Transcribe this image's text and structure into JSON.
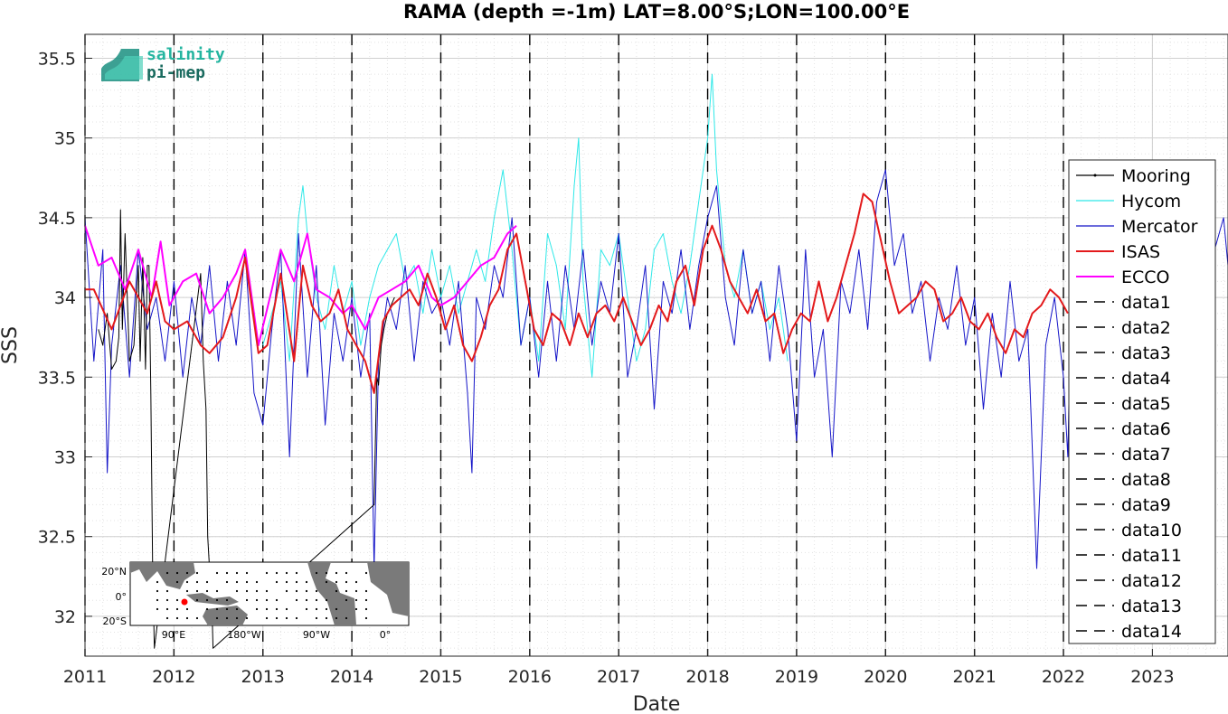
{
  "chart_data": {
    "type": "line",
    "title": "RAMA (depth =-1m) LAT=8.00°S;LON=100.00°E",
    "xlabel": "Date",
    "ylabel": "SSS",
    "xlim": [
      2011.0,
      2023.85
    ],
    "ylim": [
      31.75,
      35.65
    ],
    "x_ticks": [
      "2011",
      "2012",
      "2013",
      "2014",
      "2015",
      "2016",
      "2017",
      "2018",
      "2019",
      "2020",
      "2021",
      "2022",
      "2023"
    ],
    "y_ticks": [
      "32",
      "32.5",
      "33",
      "33.5",
      "34",
      "34.5",
      "35",
      "35.5"
    ],
    "y_tick_values": [
      32,
      32.5,
      33,
      33.5,
      34,
      34.5,
      35,
      35.5
    ],
    "grid": true,
    "legend_position": "right",
    "vertical_dashed_lines_x": [
      2011,
      2012,
      2013,
      2014,
      2015,
      2016,
      2017,
      2018,
      2019,
      2020,
      2021,
      2022
    ],
    "series": [
      {
        "name": "Mooring",
        "color": "#000000",
        "x": [
          2011.15,
          2011.2,
          2011.25,
          2011.3,
          2011.35,
          2011.38,
          2011.4,
          2011.42,
          2011.45,
          2011.5,
          2011.55,
          2011.6,
          2011.62,
          2011.65,
          2011.68,
          2011.7,
          2011.72,
          2011.74,
          2011.76,
          2011.78,
          2012.3,
          2012.33,
          2012.36,
          2012.38,
          2012.4,
          2012.42,
          2012.44,
          2014.25,
          2014.28,
          2014.3,
          2014.33,
          2014.36,
          2014.4,
          2014.44,
          2014.48
        ],
        "y": [
          33.8,
          33.7,
          33.9,
          33.55,
          33.6,
          33.75,
          34.55,
          33.8,
          34.4,
          33.6,
          33.7,
          34.2,
          33.6,
          34.25,
          33.55,
          34.2,
          34.2,
          33.4,
          32.3,
          31.8,
          34.15,
          33.6,
          33.3,
          32.5,
          32.3,
          32.2,
          31.8,
          32.7,
          33.5,
          33.45,
          33.7,
          33.8,
          33.9,
          33.95,
          34.0
        ]
      },
      {
        "name": "Hycom",
        "color": "#2ee8e8",
        "x": [
          2013.0,
          2013.1,
          2013.2,
          2013.3,
          2013.4,
          2013.45,
          2013.5,
          2013.6,
          2013.7,
          2013.8,
          2013.9,
          2014.0,
          2014.1,
          2014.2,
          2014.3,
          2014.4,
          2014.5,
          2014.6,
          2014.7,
          2014.8,
          2014.9,
          2015.0,
          2015.1,
          2015.2,
          2015.3,
          2015.4,
          2015.5,
          2015.6,
          2015.7,
          2015.8,
          2015.9,
          2016.0,
          2016.1,
          2016.2,
          2016.3,
          2016.4,
          2016.5,
          2016.55,
          2016.6,
          2016.7,
          2016.8,
          2016.9,
          2017.0,
          2017.1,
          2017.2,
          2017.3,
          2017.4,
          2017.5,
          2017.6,
          2017.7,
          2017.8,
          2017.9,
          2018.0,
          2018.05,
          2018.1,
          2018.15,
          2018.2,
          2018.3,
          2018.4,
          2018.5,
          2018.6,
          2018.7,
          2018.8,
          2018.9
        ],
        "y": [
          33.7,
          33.9,
          34.1,
          33.6,
          34.5,
          34.7,
          34.4,
          34.0,
          33.8,
          34.2,
          33.9,
          34.1,
          33.7,
          34.0,
          34.2,
          34.3,
          34.4,
          34.1,
          34.2,
          33.9,
          34.3,
          34.0,
          34.2,
          33.9,
          34.1,
          34.3,
          34.1,
          34.5,
          34.8,
          34.3,
          33.7,
          34.0,
          33.6,
          34.4,
          34.2,
          33.8,
          34.7,
          35.0,
          34.1,
          33.5,
          34.3,
          34.2,
          34.4,
          34.0,
          33.6,
          33.8,
          34.3,
          34.4,
          34.1,
          33.9,
          34.2,
          34.6,
          35.0,
          35.4,
          34.8,
          34.5,
          34.2,
          34.0,
          34.3,
          33.9,
          34.1,
          33.8,
          34.0,
          33.6
        ]
      },
      {
        "name": "Mercator",
        "color": "#1515c8",
        "x": [
          2011.0,
          2011.1,
          2011.2,
          2011.25,
          2011.3,
          2011.4,
          2011.5,
          2011.6,
          2011.7,
          2011.8,
          2011.9,
          2012.0,
          2012.1,
          2012.2,
          2012.3,
          2012.4,
          2012.5,
          2012.6,
          2012.7,
          2012.8,
          2012.9,
          2013.0,
          2013.1,
          2013.2,
          2013.3,
          2013.4,
          2013.5,
          2013.6,
          2013.7,
          2013.8,
          2013.9,
          2014.0,
          2014.1,
          2014.2,
          2014.25,
          2014.3,
          2014.4,
          2014.5,
          2014.6,
          2014.7,
          2014.8,
          2014.9,
          2015.0,
          2015.1,
          2015.2,
          2015.3,
          2015.35,
          2015.4,
          2015.5,
          2015.6,
          2015.7,
          2015.8,
          2015.9,
          2016.0,
          2016.1,
          2016.2,
          2016.3,
          2016.4,
          2016.5,
          2016.6,
          2016.7,
          2016.8,
          2016.9,
          2017.0,
          2017.1,
          2017.2,
          2017.3,
          2017.4,
          2017.5,
          2017.6,
          2017.7,
          2017.8,
          2017.9,
          2018.0,
          2018.1,
          2018.2,
          2018.3,
          2018.4,
          2018.5,
          2018.6,
          2018.7,
          2018.8,
          2018.9,
          2019.0,
          2019.1,
          2019.2,
          2019.3,
          2019.4,
          2019.5,
          2019.6,
          2019.7,
          2019.8,
          2019.9,
          2020.0,
          2020.1,
          2020.2,
          2020.3,
          2020.4,
          2020.5,
          2020.6,
          2020.7,
          2020.8,
          2020.9,
          2021.0,
          2021.1,
          2021.2,
          2021.3,
          2021.4,
          2021.5,
          2021.6,
          2021.7,
          2021.8,
          2021.9,
          2022.0,
          2022.05,
          2022.1,
          2022.2,
          2022.3,
          2022.4,
          2022.5,
          2022.6,
          2022.7,
          2022.8,
          2022.9,
          2023.0,
          2023.1,
          2023.2,
          2023.3,
          2023.4,
          2023.5,
          2023.6,
          2023.7,
          2023.8,
          2023.85
        ],
        "y": [
          34.5,
          33.6,
          34.3,
          32.9,
          33.7,
          34.2,
          33.5,
          34.3,
          33.8,
          34.0,
          33.6,
          34.1,
          33.5,
          34.0,
          33.7,
          34.2,
          33.6,
          34.1,
          33.7,
          34.3,
          33.4,
          33.2,
          33.8,
          34.3,
          33.0,
          34.4,
          33.5,
          34.2,
          33.2,
          33.9,
          33.6,
          34.0,
          33.5,
          33.9,
          32.3,
          33.6,
          34.0,
          33.8,
          34.2,
          33.6,
          34.1,
          33.9,
          34.0,
          33.7,
          34.1,
          33.4,
          32.9,
          34.0,
          33.8,
          34.2,
          34.0,
          34.5,
          33.7,
          34.0,
          33.5,
          34.1,
          33.6,
          34.2,
          33.8,
          34.3,
          33.7,
          34.1,
          33.9,
          34.4,
          33.5,
          33.8,
          34.2,
          33.3,
          34.1,
          33.9,
          34.3,
          33.8,
          34.2,
          34.5,
          34.7,
          34.0,
          33.7,
          34.3,
          33.9,
          34.1,
          33.6,
          34.2,
          33.8,
          33.1,
          34.3,
          33.5,
          33.8,
          33.0,
          34.1,
          33.9,
          34.3,
          33.8,
          34.6,
          34.8,
          34.2,
          34.4,
          33.9,
          34.1,
          33.6,
          34.0,
          33.8,
          34.2,
          33.7,
          34.0,
          33.3,
          33.9,
          33.5,
          34.1,
          33.6,
          33.8,
          32.3,
          33.7,
          34.0,
          33.5,
          33.0,
          34.5,
          34.2,
          33.9,
          33.4,
          33.8,
          34.0,
          33.6,
          33.8,
          34.2,
          33.9,
          34.1,
          33.7,
          34.3,
          34.0,
          34.4,
          33.9,
          34.3,
          34.5,
          34.2
        ]
      },
      {
        "name": "ISAS",
        "color": "#e31a1c",
        "x": [
          2011.0,
          2011.1,
          2011.3,
          2011.5,
          2011.7,
          2011.8,
          2011.9,
          2012.0,
          2012.15,
          2012.3,
          2012.4,
          2012.55,
          2012.7,
          2012.8,
          2012.95,
          2013.05,
          2013.2,
          2013.35,
          2013.45,
          2013.55,
          2013.65,
          2013.75,
          2013.85,
          2013.95,
          2014.05,
          2014.15,
          2014.25,
          2014.35,
          2014.45,
          2014.55,
          2014.65,
          2014.75,
          2014.85,
          2014.95,
          2015.05,
          2015.15,
          2015.25,
          2015.35,
          2015.45,
          2015.55,
          2015.65,
          2015.75,
          2015.85,
          2015.95,
          2016.05,
          2016.15,
          2016.25,
          2016.35,
          2016.45,
          2016.55,
          2016.65,
          2016.75,
          2016.85,
          2016.95,
          2017.05,
          2017.15,
          2017.25,
          2017.35,
          2017.45,
          2017.55,
          2017.65,
          2017.75,
          2017.85,
          2017.95,
          2018.05,
          2018.15,
          2018.25,
          2018.35,
          2018.45,
          2018.55,
          2018.65,
          2018.75,
          2018.85,
          2018.95,
          2019.05,
          2019.15,
          2019.25,
          2019.35,
          2019.45,
          2019.55,
          2019.65,
          2019.75,
          2019.85,
          2019.95,
          2020.05,
          2020.15,
          2020.25,
          2020.35,
          2020.45,
          2020.55,
          2020.65,
          2020.75,
          2020.85,
          2020.95,
          2021.05,
          2021.15,
          2021.25,
          2021.35,
          2021.45,
          2021.55,
          2021.65,
          2021.75,
          2021.85,
          2021.95,
          2022.05
        ],
        "y": [
          34.05,
          34.05,
          33.8,
          34.1,
          33.9,
          34.1,
          33.85,
          33.8,
          33.85,
          33.7,
          33.65,
          33.75,
          34.0,
          34.25,
          33.65,
          33.7,
          34.15,
          33.6,
          34.2,
          33.95,
          33.85,
          33.9,
          34.05,
          33.8,
          33.7,
          33.6,
          33.4,
          33.85,
          33.95,
          34.0,
          34.05,
          33.95,
          34.15,
          34.0,
          33.8,
          33.95,
          33.7,
          33.6,
          33.75,
          33.95,
          34.05,
          34.3,
          34.4,
          34.1,
          33.8,
          33.7,
          33.9,
          33.85,
          33.7,
          33.9,
          33.75,
          33.9,
          33.95,
          33.85,
          34.0,
          33.85,
          33.7,
          33.8,
          33.95,
          33.85,
          34.1,
          34.2,
          33.95,
          34.3,
          34.45,
          34.3,
          34.1,
          34.0,
          33.9,
          34.05,
          33.85,
          33.9,
          33.65,
          33.8,
          33.9,
          33.85,
          34.1,
          33.85,
          34.0,
          34.2,
          34.4,
          34.65,
          34.6,
          34.35,
          34.1,
          33.9,
          33.95,
          34.0,
          34.1,
          34.05,
          33.85,
          33.9,
          34.0,
          33.85,
          33.8,
          33.9,
          33.75,
          33.65,
          33.8,
          33.75,
          33.9,
          33.95,
          34.05,
          34.0,
          33.9
        ],
        "width": 2
      },
      {
        "name": "ECCO",
        "color": "#ff00ff",
        "x": [
          2011.0,
          2011.15,
          2011.3,
          2011.45,
          2011.6,
          2011.75,
          2011.85,
          2011.95,
          2012.1,
          2012.25,
          2012.4,
          2012.55,
          2012.7,
          2012.8,
          2012.95,
          2013.1,
          2013.2,
          2013.35,
          2013.5,
          2013.6,
          2013.75,
          2013.9,
          2014.0,
          2014.15,
          2014.3,
          2014.45,
          2014.6,
          2014.75,
          2014.9,
          2015.0,
          2015.15,
          2015.3,
          2015.45,
          2015.6,
          2015.75,
          2015.85
        ],
        "y": [
          34.45,
          34.2,
          34.25,
          34.05,
          34.3,
          34.0,
          34.35,
          33.95,
          34.1,
          34.15,
          33.9,
          34.0,
          34.15,
          34.3,
          33.7,
          34.05,
          34.3,
          34.1,
          34.4,
          34.05,
          34.0,
          33.9,
          33.95,
          33.8,
          34.0,
          34.05,
          34.1,
          34.2,
          34.0,
          33.95,
          34.0,
          34.1,
          34.2,
          34.25,
          34.4,
          34.45
        ],
        "width": 2
      },
      {
        "name": "data1",
        "color": "#000000",
        "dash": true
      },
      {
        "name": "data2",
        "color": "#000000",
        "dash": true
      },
      {
        "name": "data3",
        "color": "#000000",
        "dash": true
      },
      {
        "name": "data4",
        "color": "#000000",
        "dash": true
      },
      {
        "name": "data5",
        "color": "#000000",
        "dash": true
      },
      {
        "name": "data6",
        "color": "#000000",
        "dash": true
      },
      {
        "name": "data7",
        "color": "#000000",
        "dash": true
      },
      {
        "name": "data8",
        "color": "#000000",
        "dash": true
      },
      {
        "name": "data9",
        "color": "#000000",
        "dash": true
      },
      {
        "name": "data10",
        "color": "#000000",
        "dash": true
      },
      {
        "name": "data11",
        "color": "#000000",
        "dash": true
      },
      {
        "name": "data12",
        "color": "#000000",
        "dash": true
      },
      {
        "name": "data13",
        "color": "#000000",
        "dash": true
      },
      {
        "name": "data14",
        "color": "#000000",
        "dash": true
      }
    ]
  },
  "logo": {
    "line1": "salinity",
    "line2": "pi-mep",
    "color1": "#25b5a0",
    "color2": "#1a6b5f"
  },
  "inset_map": {
    "lat_labels": [
      "20°N",
      "0°",
      "20°S"
    ],
    "lon_labels": [
      "90°E",
      "180°W",
      "90°W",
      "0°"
    ],
    "marker_color": "#ff0000",
    "land_color": "#7a7a7a"
  }
}
